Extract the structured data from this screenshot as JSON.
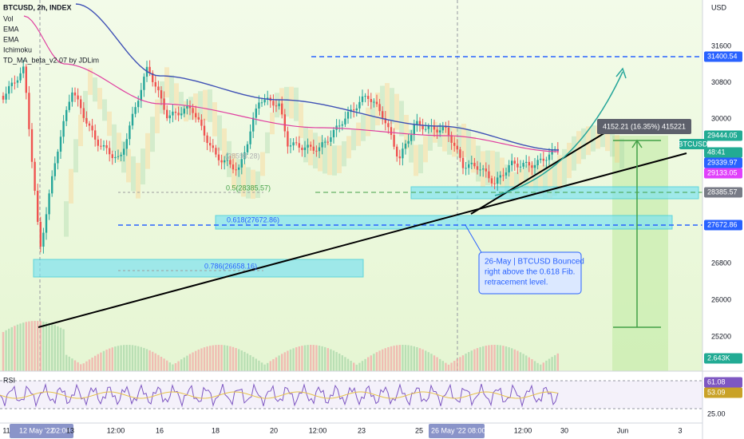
{
  "header": {
    "symbol": "BTCUSD, 2h, INDEX",
    "indicators": [
      "Vol",
      "EMA",
      "EMA",
      "Ichimoku",
      "TD_MA_beta_v2.07 by JDLim"
    ]
  },
  "price_axis": {
    "currency": "USD",
    "labels": [
      "31600",
      "30800",
      "30000",
      "26800",
      "26000",
      "25200"
    ]
  },
  "price_tags": [
    {
      "label": "31400.54",
      "color": "#2962ff"
    },
    {
      "label": "29444.05",
      "color": "#22ab94"
    },
    {
      "label": "48:41",
      "color": "#22ab94"
    },
    {
      "label": "29339.97",
      "color": "#2962ff"
    },
    {
      "label": "29133.05",
      "color": "#e040fb"
    },
    {
      "label": "28385.57",
      "color": "#787b86"
    },
    {
      "label": "27672.86",
      "color": "#2962ff"
    },
    {
      "label": "2.643K",
      "color": "#22ab94"
    }
  ],
  "symbol_tag": "BTCUSD",
  "fib_labels": [
    "(28598.28)",
    "0.5(28385.57)",
    "0.618(27672.86)",
    "0.786(26658.16)"
  ],
  "measure_label": "4152.21 (16.35%) 415221",
  "annotation": [
    "26-May | BTCUSD Bounced",
    "right above the 0.618 Fib.",
    "retracement level."
  ],
  "rsi": {
    "title": "RSI",
    "tags": [
      {
        "label": "61.08",
        "color": "#7e57c2"
      },
      {
        "label": "53.09",
        "color": "#c9a227"
      }
    ],
    "level": "25.00"
  },
  "time_axis": [
    "11",
    "12 May '22",
    "02:00",
    "13",
    "12:00",
    "16",
    "18",
    "20",
    "12:00",
    "23",
    "25",
    "26 May '22",
    "08:00",
    "12:00",
    "30",
    "Jun",
    "3"
  ]
}
